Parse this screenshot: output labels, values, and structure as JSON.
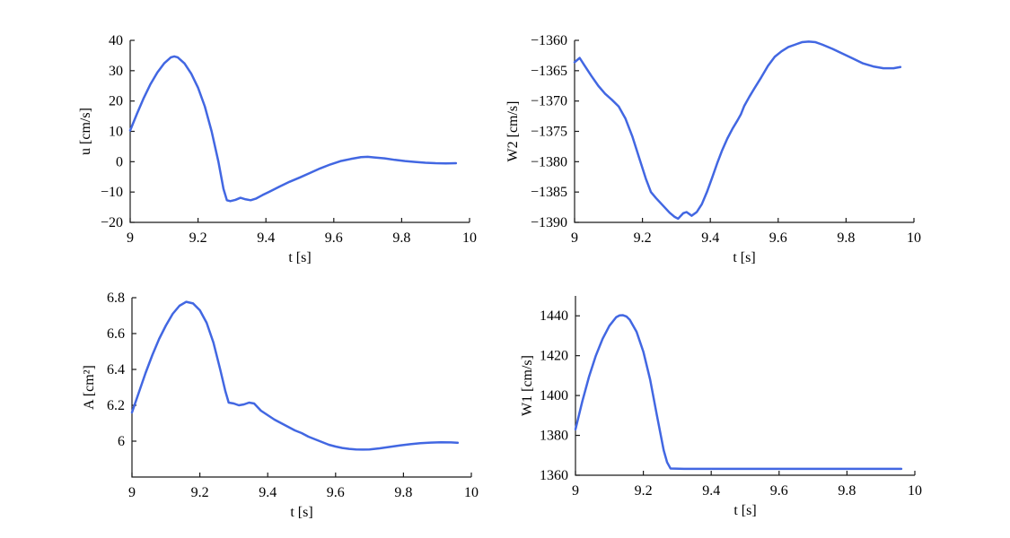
{
  "figure": {
    "line_color": "#4267e2",
    "axis_color": "#1a1a1a",
    "text_color": "#000000",
    "background_color": "#ffffff"
  },
  "chart_data": [
    {
      "type": "line",
      "title": "",
      "xlabel": "t [s]",
      "ylabel": "u [cm/s]",
      "xlim": [
        9,
        10
      ],
      "ylim": [
        -20,
        40
      ],
      "xticks": [
        9,
        9.2,
        9.4,
        9.6,
        9.8,
        10
      ],
      "yticks": [
        -20,
        -10,
        0,
        10,
        20,
        30,
        40
      ],
      "grid": false,
      "legend": null,
      "points": [
        [
          9.0,
          10.3
        ],
        [
          9.02,
          15.8
        ],
        [
          9.04,
          21.0
        ],
        [
          9.06,
          25.6
        ],
        [
          9.08,
          29.4
        ],
        [
          9.1,
          32.4
        ],
        [
          9.12,
          34.4
        ],
        [
          9.13,
          34.7
        ],
        [
          9.14,
          34.4
        ],
        [
          9.16,
          32.4
        ],
        [
          9.18,
          29.0
        ],
        [
          9.2,
          24.4
        ],
        [
          9.22,
          18.2
        ],
        [
          9.24,
          10.0
        ],
        [
          9.26,
          0.0
        ],
        [
          9.275,
          -9.0
        ],
        [
          9.285,
          -12.7
        ],
        [
          9.295,
          -13.0
        ],
        [
          9.31,
          -12.6
        ],
        [
          9.325,
          -11.9
        ],
        [
          9.34,
          -12.4
        ],
        [
          9.355,
          -12.7
        ],
        [
          9.37,
          -12.2
        ],
        [
          9.39,
          -11.0
        ],
        [
          9.41,
          -9.9
        ],
        [
          9.44,
          -8.2
        ],
        [
          9.47,
          -6.6
        ],
        [
          9.5,
          -5.2
        ],
        [
          9.53,
          -3.7
        ],
        [
          9.56,
          -2.2
        ],
        [
          9.59,
          -0.9
        ],
        [
          9.62,
          0.2
        ],
        [
          9.65,
          0.9
        ],
        [
          9.68,
          1.5
        ],
        [
          9.7,
          1.6
        ],
        [
          9.72,
          1.4
        ],
        [
          9.75,
          1.1
        ],
        [
          9.78,
          0.6
        ],
        [
          9.81,
          0.2
        ],
        [
          9.84,
          -0.1
        ],
        [
          9.87,
          -0.35
        ],
        [
          9.9,
          -0.5
        ],
        [
          9.93,
          -0.55
        ],
        [
          9.96,
          -0.5
        ]
      ]
    },
    {
      "type": "line",
      "title": "",
      "xlabel": "t [s]",
      "ylabel": "W2 [cm/s]",
      "xlim": [
        9,
        10
      ],
      "ylim": [
        -1390,
        -1360
      ],
      "xticks": [
        9,
        9.2,
        9.4,
        9.6,
        9.8,
        10
      ],
      "yticks": [
        -1390,
        -1385,
        -1380,
        -1375,
        -1370,
        -1365,
        -1360
      ],
      "grid": false,
      "legend": null,
      "points": [
        [
          9.0,
          -1363.6
        ],
        [
          9.015,
          -1362.9
        ],
        [
          9.03,
          -1364.2
        ],
        [
          9.05,
          -1365.9
        ],
        [
          9.07,
          -1367.5
        ],
        [
          9.09,
          -1368.8
        ],
        [
          9.11,
          -1369.8
        ],
        [
          9.13,
          -1370.9
        ],
        [
          9.15,
          -1372.9
        ],
        [
          9.17,
          -1375.8
        ],
        [
          9.19,
          -1379.3
        ],
        [
          9.21,
          -1382.8
        ],
        [
          9.225,
          -1385.0
        ],
        [
          9.24,
          -1386.0
        ],
        [
          9.26,
          -1387.2
        ],
        [
          9.28,
          -1388.4
        ],
        [
          9.295,
          -1389.1
        ],
        [
          9.305,
          -1389.4
        ],
        [
          9.32,
          -1388.5
        ],
        [
          9.33,
          -1388.3
        ],
        [
          9.345,
          -1388.9
        ],
        [
          9.36,
          -1388.3
        ],
        [
          9.375,
          -1387.0
        ],
        [
          9.39,
          -1385.0
        ],
        [
          9.405,
          -1382.7
        ],
        [
          9.42,
          -1380.3
        ],
        [
          9.435,
          -1378.1
        ],
        [
          9.45,
          -1376.2
        ],
        [
          9.465,
          -1374.6
        ],
        [
          9.48,
          -1373.2
        ],
        [
          9.49,
          -1372.2
        ],
        [
          9.5,
          -1370.8
        ],
        [
          9.515,
          -1369.3
        ],
        [
          9.53,
          -1367.9
        ],
        [
          9.55,
          -1366.1
        ],
        [
          9.57,
          -1364.2
        ],
        [
          9.59,
          -1362.7
        ],
        [
          9.61,
          -1361.8
        ],
        [
          9.63,
          -1361.1
        ],
        [
          9.65,
          -1360.7
        ],
        [
          9.67,
          -1360.3
        ],
        [
          9.69,
          -1360.2
        ],
        [
          9.71,
          -1360.3
        ],
        [
          9.73,
          -1360.7
        ],
        [
          9.76,
          -1361.4
        ],
        [
          9.79,
          -1362.2
        ],
        [
          9.82,
          -1363.0
        ],
        [
          9.85,
          -1363.8
        ],
        [
          9.88,
          -1364.3
        ],
        [
          9.91,
          -1364.6
        ],
        [
          9.94,
          -1364.6
        ],
        [
          9.96,
          -1364.4
        ]
      ]
    },
    {
      "type": "line",
      "title": "",
      "xlabel": "t [s]",
      "ylabel": "A [cm²]",
      "xlim": [
        9,
        10
      ],
      "ylim": [
        5.8,
        6.8
      ],
      "xticks": [
        9,
        9.2,
        9.4,
        9.6,
        9.8,
        10
      ],
      "yticks": [
        6,
        6.2,
        6.4,
        6.6,
        6.8
      ],
      "grid": false,
      "legend": null,
      "points": [
        [
          9.0,
          6.16
        ],
        [
          9.02,
          6.27
        ],
        [
          9.04,
          6.38
        ],
        [
          9.06,
          6.48
        ],
        [
          9.08,
          6.57
        ],
        [
          9.1,
          6.645
        ],
        [
          9.12,
          6.71
        ],
        [
          9.14,
          6.755
        ],
        [
          9.16,
          6.777
        ],
        [
          9.18,
          6.768
        ],
        [
          9.2,
          6.73
        ],
        [
          9.22,
          6.66
        ],
        [
          9.24,
          6.55
        ],
        [
          9.26,
          6.4
        ],
        [
          9.275,
          6.28
        ],
        [
          9.285,
          6.215
        ],
        [
          9.3,
          6.21
        ],
        [
          9.315,
          6.2
        ],
        [
          9.33,
          6.205
        ],
        [
          9.345,
          6.215
        ],
        [
          9.36,
          6.21
        ],
        [
          9.38,
          6.17
        ],
        [
          9.4,
          6.145
        ],
        [
          9.42,
          6.12
        ],
        [
          9.44,
          6.1
        ],
        [
          9.46,
          6.08
        ],
        [
          9.48,
          6.06
        ],
        [
          9.5,
          6.045
        ],
        [
          9.52,
          6.025
        ],
        [
          9.54,
          6.01
        ],
        [
          9.56,
          5.995
        ],
        [
          9.58,
          5.98
        ],
        [
          9.6,
          5.97
        ],
        [
          9.62,
          5.962
        ],
        [
          9.64,
          5.957
        ],
        [
          9.66,
          5.954
        ],
        [
          9.68,
          5.953
        ],
        [
          9.7,
          5.954
        ],
        [
          9.73,
          5.96
        ],
        [
          9.76,
          5.968
        ],
        [
          9.79,
          5.976
        ],
        [
          9.82,
          5.983
        ],
        [
          9.85,
          5.989
        ],
        [
          9.88,
          5.992
        ],
        [
          9.91,
          5.994
        ],
        [
          9.94,
          5.993
        ],
        [
          9.96,
          5.991
        ]
      ]
    },
    {
      "type": "line",
      "title": "",
      "xlabel": "t [s]",
      "ylabel": "W1 [cm/s]",
      "xlim": [
        9,
        10
      ],
      "ylim": [
        1360,
        1450
      ],
      "xticks": [
        9,
        9.2,
        9.4,
        9.6,
        9.8,
        10
      ],
      "yticks": [
        1360,
        1380,
        1400,
        1420,
        1440
      ],
      "grid": false,
      "legend": null,
      "points": [
        [
          9.0,
          1383
        ],
        [
          9.02,
          1397
        ],
        [
          9.04,
          1409.5
        ],
        [
          9.06,
          1420
        ],
        [
          9.08,
          1428.5
        ],
        [
          9.1,
          1435
        ],
        [
          9.12,
          1439.3
        ],
        [
          9.13,
          1440.2
        ],
        [
          9.14,
          1440.3
        ],
        [
          9.15,
          1439.7
        ],
        [
          9.16,
          1438
        ],
        [
          9.18,
          1432
        ],
        [
          9.2,
          1422
        ],
        [
          9.22,
          1408
        ],
        [
          9.24,
          1390
        ],
        [
          9.26,
          1372.5
        ],
        [
          9.27,
          1366.5
        ],
        [
          9.28,
          1363.4
        ],
        [
          9.32,
          1363.2
        ],
        [
          9.4,
          1363.2
        ],
        [
          9.5,
          1363.2
        ],
        [
          9.6,
          1363.2
        ],
        [
          9.7,
          1363.2
        ],
        [
          9.8,
          1363.2
        ],
        [
          9.9,
          1363.2
        ],
        [
          9.96,
          1363.2
        ]
      ]
    }
  ]
}
